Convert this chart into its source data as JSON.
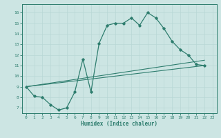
{
  "line1_x": [
    0,
    1,
    2,
    3,
    4,
    5,
    6,
    7,
    8,
    9,
    10,
    11,
    12,
    13,
    14,
    15,
    16,
    17,
    18,
    19,
    20,
    21,
    22
  ],
  "line1_y": [
    9.0,
    8.1,
    8.0,
    7.3,
    6.8,
    7.0,
    8.5,
    11.6,
    8.5,
    13.1,
    14.8,
    15.0,
    15.0,
    15.5,
    14.8,
    16.0,
    15.5,
    14.5,
    13.3,
    12.5,
    12.0,
    11.1,
    11.0
  ],
  "line2_x": [
    0,
    22
  ],
  "line2_y": [
    9.0,
    11.0
  ],
  "line3_x": [
    0,
    22
  ],
  "line3_y": [
    9.0,
    11.5
  ],
  "line_color": "#2e7d6e",
  "bg_color": "#cce5e3",
  "xlabel": "Humidex (Indice chaleur)",
  "xlim": [
    -0.5,
    23.5
  ],
  "ylim": [
    6.5,
    16.8
  ],
  "yticks": [
    7,
    8,
    9,
    10,
    11,
    12,
    13,
    14,
    15,
    16
  ],
  "xticks": [
    0,
    1,
    2,
    3,
    4,
    5,
    6,
    7,
    8,
    9,
    10,
    11,
    12,
    13,
    14,
    15,
    16,
    17,
    18,
    19,
    20,
    21,
    22,
    23
  ]
}
